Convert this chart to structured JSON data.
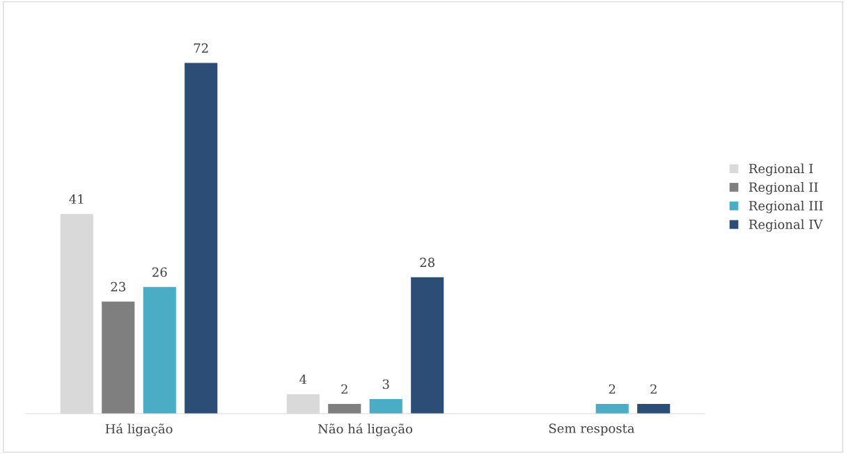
{
  "chart_data": {
    "type": "bar",
    "categories": [
      "Há ligação",
      "Não há ligação",
      "Sem resposta"
    ],
    "series": [
      {
        "name": "Regional I",
        "color": "#d9d9d9",
        "values": [
          41,
          4,
          null
        ]
      },
      {
        "name": "Regional II",
        "color": "#7f7f7f",
        "values": [
          23,
          2,
          null
        ]
      },
      {
        "name": "Regional III",
        "color": "#4bacc6",
        "values": [
          26,
          3,
          2
        ]
      },
      {
        "name": "Regional IV",
        "color": "#2c4d75",
        "values": [
          72,
          28,
          2
        ]
      }
    ],
    "data_labels": true,
    "legend": "right",
    "grid": false,
    "tick_labels": "x"
  }
}
